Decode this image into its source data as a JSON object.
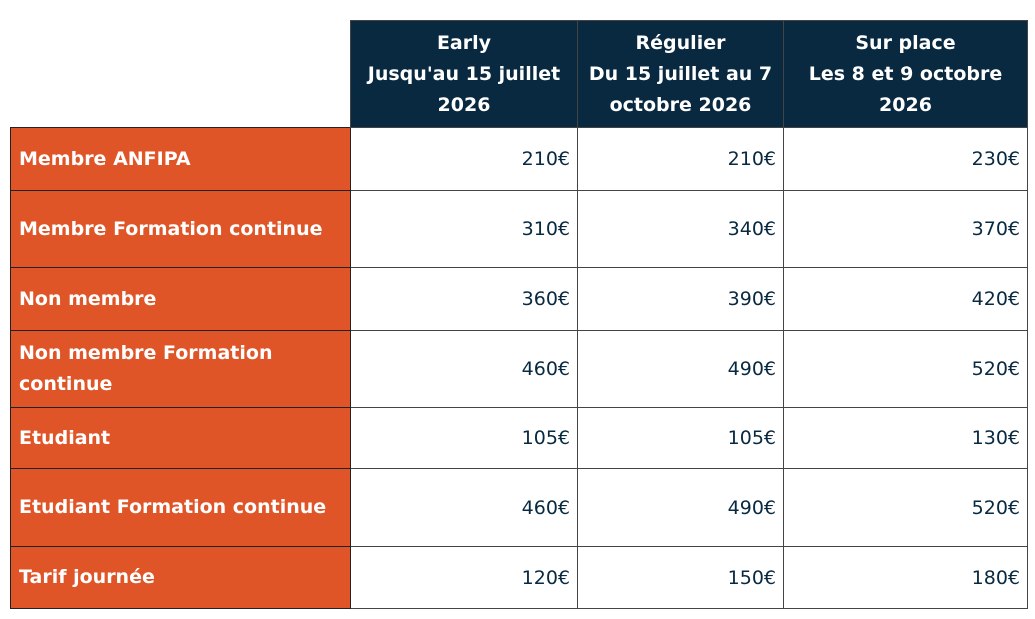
{
  "colors": {
    "header_bg": "#082940",
    "label_bg": "#e05527",
    "price_text": "#082940"
  },
  "columns": [
    {
      "line1": "Early",
      "line2": "Jusqu'au 15 juillet",
      "line3": "2026"
    },
    {
      "line1": "Régulier",
      "line2": "Du 15 juillet au 7",
      "line3": "octobre 2026"
    },
    {
      "line1": "Sur place",
      "line2": "Les 8 et 9 octobre",
      "line3": "2026"
    }
  ],
  "rows": [
    {
      "label": "Membre ANFIPA",
      "prices": [
        "210€",
        "210€",
        "230€"
      ]
    },
    {
      "label": "Membre Formation continue",
      "prices": [
        "310€",
        "340€",
        "370€"
      ]
    },
    {
      "label": "Non membre",
      "prices": [
        "360€",
        "390€",
        "420€"
      ]
    },
    {
      "label": "Non membre Formation continue",
      "prices": [
        "460€",
        "490€",
        "520€"
      ]
    },
    {
      "label": "Etudiant",
      "prices": [
        "105€",
        "105€",
        "130€"
      ]
    },
    {
      "label": "Etudiant Formation continue",
      "prices": [
        "460€",
        "490€",
        "520€"
      ]
    },
    {
      "label": "Tarif journée",
      "prices": [
        "120€",
        "150€",
        "180€"
      ]
    }
  ]
}
